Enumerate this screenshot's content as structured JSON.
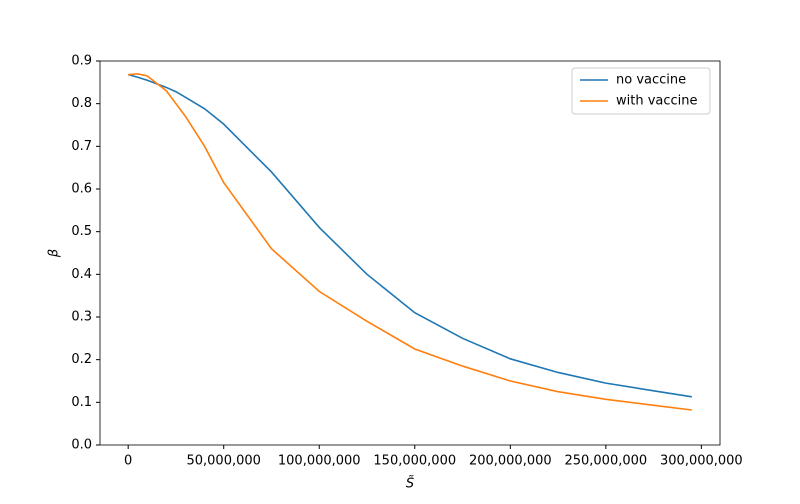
{
  "chart_data": {
    "type": "line",
    "x_label": "S̃",
    "y_label": "β",
    "x": [
      0,
      5000000,
      10000000,
      20000000,
      25000000,
      30000000,
      40000000,
      50000000,
      75000000,
      100000000,
      125000000,
      150000000,
      175000000,
      200000000,
      225000000,
      250000000,
      275000000,
      295000000
    ],
    "series": [
      {
        "name": "no vaccine",
        "color": "#1f77b4",
        "values": [
          0.868,
          0.862,
          0.855,
          0.838,
          0.828,
          0.815,
          0.788,
          0.752,
          0.64,
          0.51,
          0.4,
          0.31,
          0.25,
          0.202,
          0.17,
          0.145,
          0.127,
          0.113
        ]
      },
      {
        "name": "with vaccine",
        "color": "#ff7f0e",
        "values": [
          0.868,
          0.87,
          0.865,
          0.83,
          0.8,
          0.77,
          0.7,
          0.615,
          0.46,
          0.36,
          0.29,
          0.225,
          0.185,
          0.15,
          0.125,
          0.107,
          0.093,
          0.082
        ]
      }
    ],
    "xlim": [
      -14750000,
      309750000
    ],
    "xticks": [
      {
        "value": 0,
        "label": "0"
      },
      {
        "value": 50000000,
        "label": "50,000,000"
      },
      {
        "value": 100000000,
        "label": "100,000,000"
      },
      {
        "value": 150000000,
        "label": "150,000,000"
      },
      {
        "value": 200000000,
        "label": "200,000,000"
      },
      {
        "value": 250000000,
        "label": "250,000,000"
      },
      {
        "value": 300000000,
        "label": "300,000,000"
      }
    ],
    "ylim": [
      0,
      0.9
    ],
    "yticks": [
      {
        "value": 0,
        "label": "0.0"
      },
      0.1,
      0.2,
      0.3,
      0.4,
      0.5,
      0.6,
      0.7,
      0.8,
      0.9
    ],
    "legend": "upper right"
  }
}
